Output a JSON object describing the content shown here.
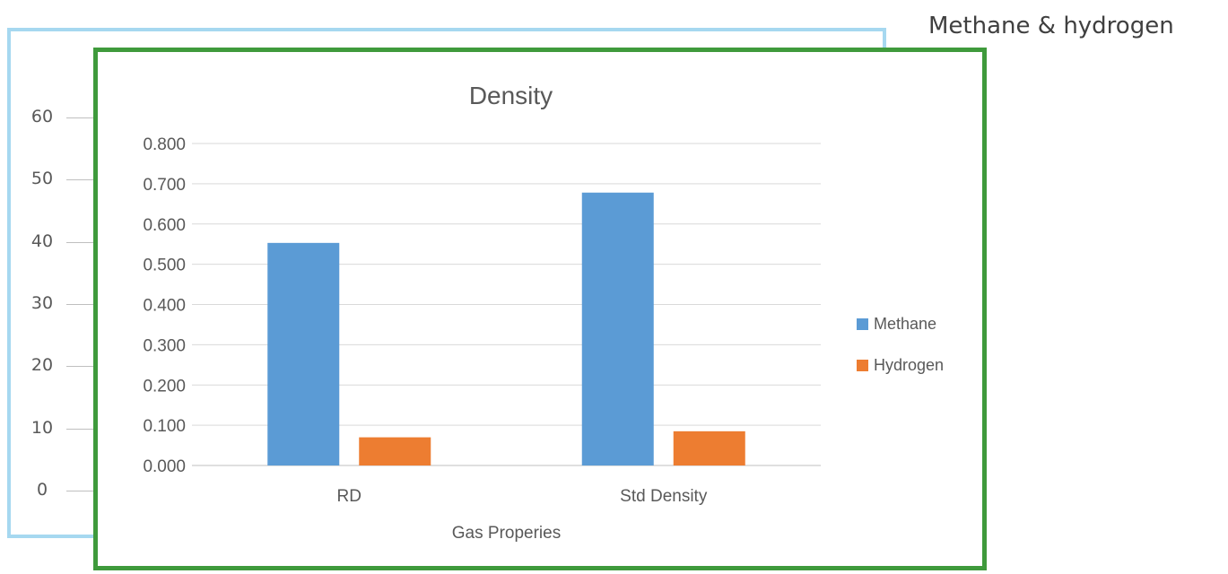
{
  "page_title": "Methane & hydrogen",
  "background_chart": {
    "y_ticks": [
      "60",
      "50",
      "40",
      "30",
      "20",
      "10",
      "0"
    ]
  },
  "chart_data": {
    "type": "bar",
    "title": "Density",
    "xlabel": "Gas Properies",
    "ylabel": "",
    "categories": [
      "RD",
      "Std Density"
    ],
    "series": [
      {
        "name": "Methane",
        "color": "#5b9bd5",
        "values": [
          0.553,
          0.678
        ]
      },
      {
        "name": "Hydrogen",
        "color": "#ed7d31",
        "values": [
          0.07,
          0.085
        ]
      }
    ],
    "ylim": [
      0,
      0.8
    ],
    "y_ticks": [
      "0.000",
      "0.100",
      "0.200",
      "0.300",
      "0.400",
      "0.500",
      "0.600",
      "0.700",
      "0.800"
    ],
    "grid": true,
    "legend_position": "right"
  }
}
